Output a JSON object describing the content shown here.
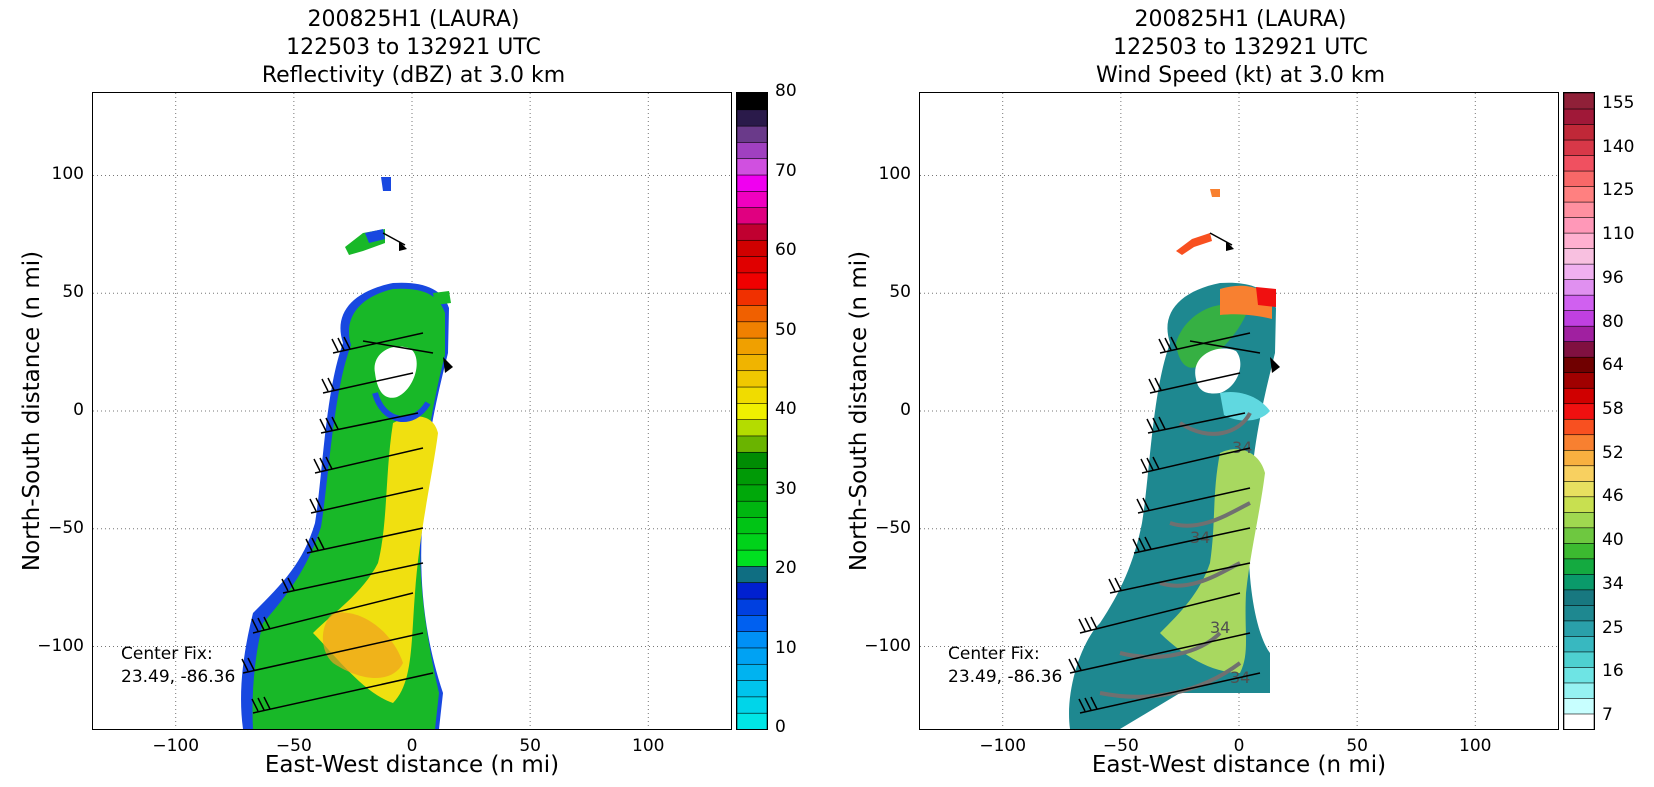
{
  "figure": {
    "panels": [
      {
        "title_lines": [
          "200825H1 (LAURA)",
          "122503 to 132921 UTC",
          "Reflectivity (dBZ) at 3.0 km"
        ],
        "xlabel": "East-West distance (n mi)",
        "ylabel": "North-South distance (n mi)",
        "center_fix_lines": [
          "Center Fix:",
          "23.49, -86.36"
        ],
        "colorbar": {
          "levels": 34,
          "tick_labels": [
            "0",
            "10",
            "20",
            "30",
            "40",
            "50",
            "60",
            "70",
            "80"
          ],
          "tick_values": [
            0,
            10,
            20,
            30,
            40,
            50,
            60,
            70,
            80
          ],
          "min": 0,
          "max": 80,
          "colors": [
            "#00e6e6",
            "#00d5e9",
            "#00c4ec",
            "#00b3f0",
            "#00a2f3",
            "#0090f6",
            "#0060f0",
            "#0040e0",
            "#0020d0",
            "#0f6e82",
            "#00e020",
            "#00d21a",
            "#00c415",
            "#00b610",
            "#00a80a",
            "#009a06",
            "#008c03",
            "#6ab400",
            "#b4dc00",
            "#f0f000",
            "#f0dc00",
            "#f0c800",
            "#f0b400",
            "#f0a000",
            "#f08000",
            "#f06000",
            "#f03000",
            "#f00000",
            "#e00000",
            "#d00000",
            "#c00030",
            "#e00080",
            "#f000c0",
            "#f000f0",
            "#d050e0",
            "#a040c0",
            "#6a3a8a",
            "#2a1a4a",
            "#000000"
          ]
        }
      },
      {
        "title_lines": [
          "200825H1 (LAURA)",
          "122503 to 132921 UTC",
          "Wind Speed (kt) at 3.0 km"
        ],
        "xlabel": "East-West distance (n mi)",
        "ylabel": "North-South distance (n mi)",
        "center_fix_lines": [
          "Center Fix:",
          "23.49, -86.36"
        ],
        "colorbar": {
          "tick_labels": [
            "7",
            "16",
            "25",
            "34",
            "40",
            "46",
            "52",
            "58",
            "64",
            "80",
            "96",
            "110",
            "125",
            "140",
            "155"
          ],
          "colors": [
            "#ffffff",
            "#c8ffff",
            "#96f2f2",
            "#6ee4e4",
            "#4ed0d0",
            "#38b8c0",
            "#2aa0aa",
            "#1e8890",
            "#187880",
            "#0a9a6a",
            "#14aa40",
            "#3cba30",
            "#6ec840",
            "#a0d850",
            "#c8e050",
            "#e8e060",
            "#f8d060",
            "#f8b040",
            "#f88030",
            "#f85020",
            "#f01010",
            "#d00000",
            "#a00000",
            "#700000",
            "#801040",
            "#a020a0",
            "#c040e0",
            "#d060f0",
            "#e090f0",
            "#f0b0f0",
            "#f8c0e0",
            "#ffb0d0",
            "#ff98b8",
            "#ff90a0",
            "#ff8080",
            "#f86868",
            "#f05060",
            "#d83848",
            "#c02838",
            "#a01838",
            "#902038"
          ]
        }
      }
    ],
    "axes": {
      "xlim": [
        -135,
        135
      ],
      "ylim": [
        -135,
        135
      ],
      "xticks": [
        -100,
        -50,
        0,
        50,
        100
      ],
      "xtick_labels": [
        "−100",
        "−50",
        "0",
        "50",
        "100"
      ],
      "yticks": [
        100,
        50,
        0,
        -50,
        -100
      ],
      "ytick_labels": [
        "100",
        "50",
        "0",
        "−50",
        "−100"
      ],
      "grid": "dotted"
    }
  },
  "chart_data": [
    {
      "type": "heatmap",
      "title": "200825H1 (LAURA) 122503 to 132921 UTC Reflectivity (dBZ) at 3.0 km",
      "xlabel": "East-West distance (n mi)",
      "ylabel": "North-South distance (n mi)",
      "xlim": [
        -135,
        135
      ],
      "ylim": [
        -135,
        135
      ],
      "colorbar_range": [
        0,
        80
      ],
      "colorbar_units": "dBZ",
      "grid": true
    },
    {
      "type": "heatmap",
      "title": "200825H1 (LAURA) 122503 to 132921 UTC Wind Speed (kt) at 3.0 km",
      "xlabel": "East-West distance (n mi)",
      "ylabel": "North-South distance (n mi)",
      "xlim": [
        -135,
        135
      ],
      "ylim": [
        -135,
        135
      ],
      "colorbar_range": [
        7,
        160
      ],
      "colorbar_units": "kt",
      "contour_label": "34",
      "grid": true
    }
  ],
  "colors": {
    "refl_blue": "#1040e0",
    "refl_green": "#10b820",
    "refl_yellow": "#f0e000",
    "refl_orange": "#f0a000",
    "wind_teal": "#1e8890",
    "wind_lightgreen": "#a0d850",
    "wind_orange": "#f88030",
    "wind_red": "#f01010",
    "contour_gray": "#707070"
  }
}
